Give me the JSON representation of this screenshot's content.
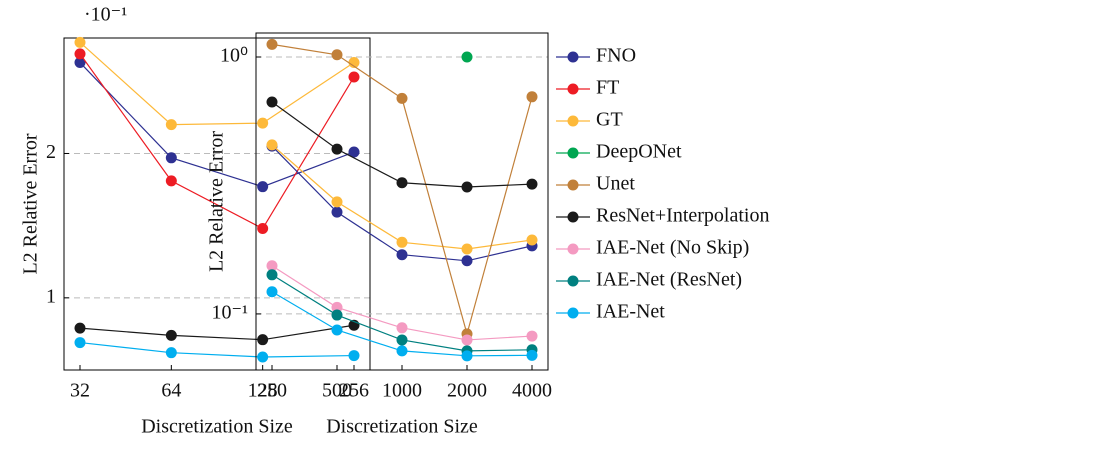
{
  "chart_data": [
    {
      "type": "line",
      "xlabel": "Discretization Size",
      "ylabel": "L2 Relative Error",
      "y_multiplier": "·10⁻¹",
      "categories": [
        "32",
        "64",
        "128",
        "256"
      ],
      "ylim": [
        0.5,
        2.8
      ],
      "yticks": [
        1,
        2
      ],
      "grid": true,
      "log_y": false,
      "legend": false,
      "series": [
        {
          "name": "FNO",
          "color": "#2e3192",
          "values": [
            2.63,
            1.97,
            1.77,
            2.01
          ]
        },
        {
          "name": "FT",
          "color": "#ed1c24",
          "values": [
            2.69,
            1.81,
            1.48,
            2.53
          ]
        },
        {
          "name": "GT",
          "color": "#fdb93a",
          "values": [
            2.77,
            2.2,
            2.21,
            2.63
          ]
        },
        {
          "name": "ResNet+Interpolation",
          "color": "#1a1a1a",
          "values": [
            0.79,
            0.74,
            0.71,
            0.81
          ]
        },
        {
          "name": "IAE-Net",
          "color": "#00aeef",
          "values": [
            0.69,
            0.62,
            0.59,
            0.6
          ]
        }
      ]
    },
    {
      "type": "line",
      "xlabel": "Discretization Size",
      "ylabel": "L2 Relative Error",
      "categories": [
        "250",
        "500",
        "1000",
        "2000",
        "4000"
      ],
      "ylim": [
        0.0605,
        1.24
      ],
      "yticks": [
        {
          "value": 1,
          "label": "10⁰"
        },
        {
          "value": 0.1,
          "label": "10⁻¹"
        }
      ],
      "grid": true,
      "log_y": true,
      "legend": "right",
      "series": [
        {
          "name": "FNO",
          "color": "#2e3192",
          "values": [
            0.45,
            0.249,
            0.17,
            0.161,
            0.184
          ]
        },
        {
          "name": "FT",
          "color": "#ed1c24",
          "values": [
            null,
            null,
            null,
            null,
            null
          ]
        },
        {
          "name": "GT",
          "color": "#fdb93a",
          "values": [
            0.455,
            0.273,
            0.19,
            0.179,
            0.194
          ]
        },
        {
          "name": "DeepONet",
          "color": "#00a651",
          "values": [
            null,
            null,
            null,
            1.0,
            null
          ]
        },
        {
          "name": "Unet",
          "color": "#c1803a",
          "values": [
            1.12,
            1.02,
            0.69,
            0.0836,
            0.7
          ]
        },
        {
          "name": "ResNet+Interpolation",
          "color": "#1a1a1a",
          "values": [
            0.668,
            0.438,
            0.324,
            0.312,
            0.32
          ]
        },
        {
          "name": "IAE-Net (No Skip)",
          "color": "#f49ac1",
          "values": [
            0.154,
            0.106,
            0.0883,
            0.0792,
            0.082
          ]
        },
        {
          "name": "IAE-Net (ResNet)",
          "color": "#008080",
          "values": [
            0.142,
            0.099,
            0.0792,
            0.0718,
            0.0725
          ]
        },
        {
          "name": "IAE-Net",
          "color": "#00aeef",
          "values": [
            0.122,
            0.0866,
            0.0718,
            0.0687,
            0.069
          ]
        }
      ]
    }
  ]
}
